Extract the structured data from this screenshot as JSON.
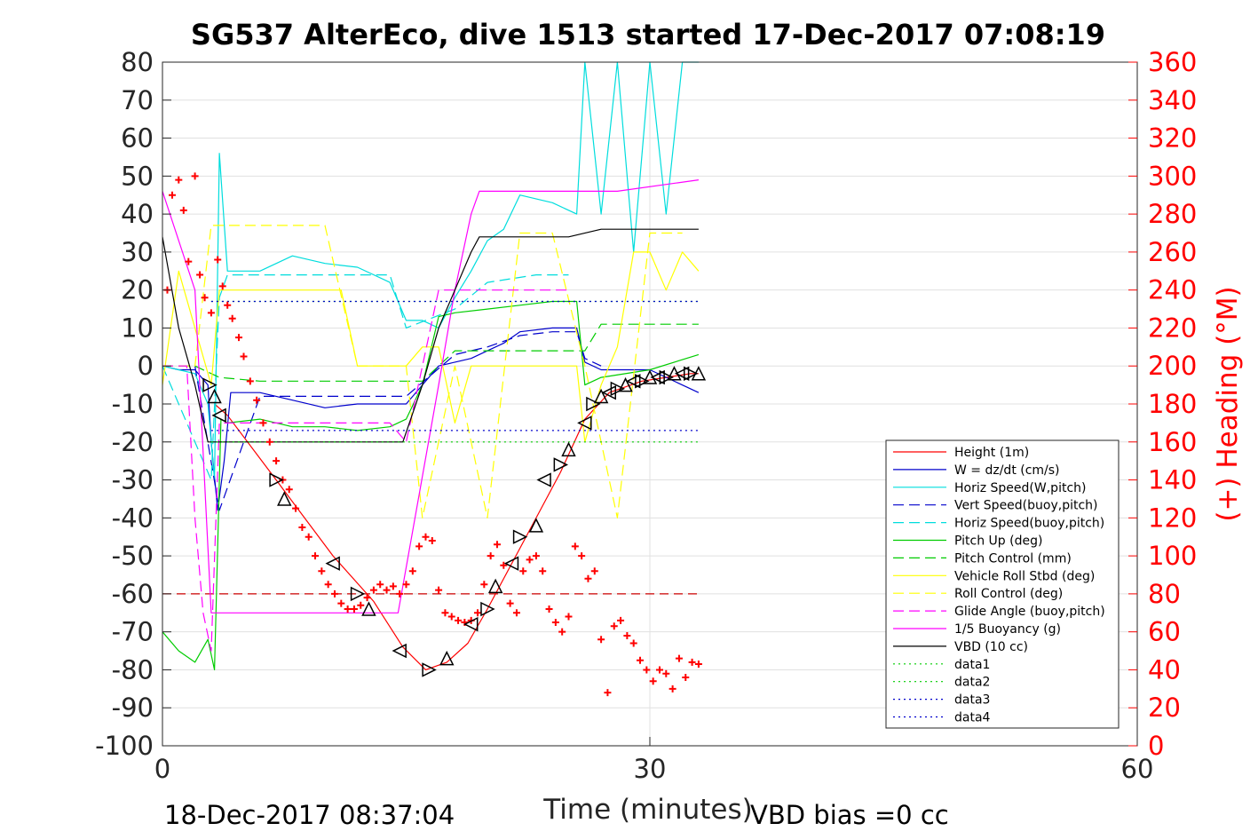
{
  "chart_data": {
    "type": "line",
    "title": "SG537 AlterEco, dive 1513 started 17-Dec-2017 07:08:19",
    "xlabel": "Time (minutes)",
    "ylabel": "",
    "ylabel_right": "(+) Heading (°M)",
    "xlim": [
      0,
      60
    ],
    "ylim": [
      -100,
      80
    ],
    "ylim_right": [
      0,
      360
    ],
    "x_ticks": [
      "0",
      "30",
      "60"
    ],
    "y_ticks": [
      "80",
      "70",
      "60",
      "50",
      "40",
      "30",
      "20",
      "10",
      "0",
      "-10",
      "-20",
      "-30",
      "-40",
      "-50",
      "-60",
      "-70",
      "-80",
      "-90",
      "-100"
    ],
    "y_ticks_right": [
      "360",
      "340",
      "320",
      "300",
      "280",
      "260",
      "240",
      "220",
      "200",
      "180",
      "160",
      "140",
      "120",
      "100",
      "80",
      "60",
      "40",
      "20",
      "0"
    ],
    "grid": true,
    "legend_position": "bottom-right",
    "footer_left": "18-Dec-2017 08:37:04",
    "footer_right": "VBD bias =0 cc",
    "legend": [
      {
        "label": "Height (1m)",
        "color": "#ff0000",
        "dash": ""
      },
      {
        "label": "W = dz/dt (cm/s)",
        "color": "#0000cc",
        "dash": ""
      },
      {
        "label": "Horiz Speed(W,pitch)",
        "color": "#00dddd",
        "dash": ""
      },
      {
        "label": "Vert Speed(buoy,pitch)",
        "color": "#0000cc",
        "dash": "12,6"
      },
      {
        "label": "Horiz Speed(buoy,pitch)",
        "color": "#00dddd",
        "dash": "12,6"
      },
      {
        "label": "Pitch Up (deg)",
        "color": "#00cc00",
        "dash": ""
      },
      {
        "label": "Pitch Control (mm)",
        "color": "#00cc00",
        "dash": "12,6"
      },
      {
        "label": "Vehicle Roll Stbd (deg)",
        "color": "#ffff00",
        "dash": ""
      },
      {
        "label": "Roll Control (deg)",
        "color": "#ffff00",
        "dash": "12,6"
      },
      {
        "label": "Glide Angle (buoy,pitch)",
        "color": "#ff00ff",
        "dash": "12,6"
      },
      {
        "label": "1/5 Buoyancy (g)",
        "color": "#ff00ff",
        "dash": ""
      },
      {
        "label": "VBD (10 cc)",
        "color": "#000000",
        "dash": ""
      },
      {
        "label": "data1",
        "color": "#00cc00",
        "dash": "2,4"
      },
      {
        "label": "data2",
        "color": "#00cc00",
        "dash": "2,4"
      },
      {
        "label": "data3",
        "color": "#0000cc",
        "dash": "2,4"
      },
      {
        "label": "data4",
        "color": "#0000cc",
        "dash": "2,4"
      }
    ],
    "series": [
      {
        "name": "Height (1m)",
        "color": "#ff0000",
        "dash": "",
        "axis": "left",
        "x": [
          3.2,
          4.0,
          7.0,
          10.5,
          13.0,
          14.8,
          16.2,
          17.5,
          18.8,
          20.0,
          22.0,
          24.5,
          26.0,
          27.5,
          29.5,
          31.0,
          32.5,
          33.0
        ],
        "y": [
          -10,
          -13,
          -30,
          -50,
          -62,
          -74,
          -80,
          -78,
          -73,
          -64,
          -48,
          -28,
          -14,
          -7,
          -4,
          -3,
          -2,
          -2
        ]
      },
      {
        "name": "W = dz/dt (cm/s)",
        "color": "#0000cc",
        "dash": "",
        "axis": "left",
        "x": [
          0,
          1.0,
          2.0,
          2.8,
          3.0,
          3.4,
          3.8,
          4.2,
          6.0,
          8.0,
          10.0,
          12.0,
          14.0,
          15.0,
          16.0,
          17.0,
          18.0,
          19.0,
          20.0,
          21.0,
          22.0,
          24.0,
          25.5,
          26.0,
          27.0,
          30.0,
          33.0
        ],
        "y": [
          0,
          -1,
          -1,
          -5,
          -20,
          -38,
          -25,
          -7,
          -7,
          -9,
          -11,
          -10,
          -10,
          -10,
          -5,
          0,
          1,
          2,
          4,
          6,
          9,
          10,
          10,
          1,
          -1,
          -1,
          -7
        ]
      },
      {
        "name": "Horiz Speed(W,pitch)",
        "color": "#00dddd",
        "dash": "",
        "axis": "left",
        "x": [
          0,
          1.0,
          2.0,
          2.8,
          3.2,
          3.5,
          4.0,
          6.0,
          8.0,
          10.0,
          12.0,
          14.0,
          15.0,
          16.0,
          17.0,
          18.0,
          19.0,
          20.0,
          21.0,
          22.0,
          24.0,
          25.5,
          26.0,
          27.0,
          28.0,
          29.0,
          30.0,
          31.0,
          32.0,
          33.0
        ],
        "y": [
          0,
          -1,
          -2,
          -10,
          -30,
          56,
          25,
          25,
          29,
          27,
          26,
          22,
          12,
          12,
          10,
          18,
          25,
          33,
          36,
          45,
          43,
          40,
          80,
          40,
          80,
          30,
          80,
          40,
          80,
          80
        ]
      },
      {
        "name": "Vert Speed(buoy,pitch)",
        "color": "#0000cc",
        "dash": "12,6",
        "axis": "left",
        "x": [
          0,
          2.0,
          3.5,
          6.0,
          14.0,
          15.0,
          18.0,
          20.0,
          22.0,
          24.0,
          25.5,
          26.0,
          27.0
        ],
        "y": [
          0,
          0,
          -38,
          -8,
          -8,
          -8,
          3,
          5,
          8,
          9,
          9,
          2,
          0
        ]
      },
      {
        "name": "Horiz Speed(buoy,pitch)",
        "color": "#00dddd",
        "dash": "12,6",
        "axis": "left",
        "x": [
          0,
          3.0,
          3.5,
          4.0,
          14.0,
          15.0,
          18.0,
          20.0,
          23.0,
          25.0
        ],
        "y": [
          0,
          -30,
          18,
          24,
          24,
          10,
          15,
          22,
          24,
          24
        ]
      },
      {
        "name": "Pitch Up (deg)",
        "color": "#00cc00",
        "dash": "",
        "axis": "left",
        "x": [
          0,
          1.0,
          2.0,
          2.8,
          3.2,
          3.6,
          4.0,
          6.0,
          8.0,
          10.0,
          12.0,
          14.0,
          15.0,
          16.0,
          17.0,
          18.0,
          20.0,
          22.0,
          24.0,
          25.5,
          26.0,
          27.0,
          30.0,
          33.0
        ],
        "y": [
          -70,
          -75,
          -78,
          -72,
          -80,
          -14,
          -15,
          -14,
          -16,
          -16,
          -17,
          -16,
          -14,
          -5,
          13,
          14,
          15,
          16,
          17,
          17,
          -5,
          -3,
          -1,
          3
        ]
      },
      {
        "name": "Pitch Control (mm)",
        "color": "#00cc00",
        "dash": "12,6",
        "axis": "left",
        "x": [
          0,
          2.0,
          3.5,
          6.0,
          14.0,
          16.0,
          18.0,
          20.0,
          26.0,
          27.0,
          33.0
        ],
        "y": [
          0,
          0,
          -3,
          -4,
          -4,
          -4,
          4,
          4,
          4,
          11,
          11
        ]
      },
      {
        "name": "Vehicle Roll Stbd (deg)",
        "color": "#ffff00",
        "dash": "",
        "axis": "left",
        "x": [
          0,
          1.0,
          2.0,
          3.0,
          3.5,
          4.0,
          6.0,
          8.0,
          10.0,
          11.0,
          12.0,
          14.0,
          15.0,
          16.0,
          17.0,
          18.0,
          19.0,
          20.0,
          22.0,
          24.0,
          25.5,
          26.0,
          27.0,
          28.0,
          29.0,
          30.0,
          31.0,
          32.0,
          33.0
        ],
        "y": [
          -5,
          25,
          10,
          -5,
          20,
          20,
          20,
          20,
          20,
          20,
          0,
          0,
          0,
          5,
          5,
          -15,
          0,
          0,
          0,
          0,
          0,
          -20,
          -5,
          5,
          30,
          30,
          20,
          30,
          25
        ]
      },
      {
        "name": "Roll Control (deg)",
        "color": "#ffff00",
        "dash": "12,6",
        "axis": "left",
        "x": [
          0,
          2.0,
          3.0,
          3.5,
          6.0,
          10.0,
          12.0,
          14.0,
          15.0,
          16.0,
          18.0,
          20.0,
          22.0,
          24.0,
          26.0,
          28.0,
          30.0,
          32.0
        ],
        "y": [
          0,
          0,
          37,
          37,
          37,
          37,
          0,
          0,
          0,
          -40,
          0,
          -40,
          35,
          35,
          0,
          -40,
          35,
          35
        ]
      },
      {
        "name": "Glide Angle (buoy,pitch)",
        "color": "#ff00ff",
        "dash": "12,6",
        "axis": "left",
        "x": [
          0,
          1.5,
          2.0,
          2.5,
          3.0,
          3.5,
          4.0,
          14.0,
          15.0,
          17.0,
          18.0,
          20.0,
          24.0,
          25.0
        ],
        "y": [
          0,
          0,
          -40,
          -65,
          -75,
          -15,
          -15,
          -15,
          -20,
          20,
          20,
          20,
          20,
          20
        ]
      },
      {
        "name": "1/5 Buoyancy (g)",
        "color": "#ff00ff",
        "dash": "",
        "axis": "left",
        "x": [
          0,
          2.0,
          3.0,
          3.5,
          4.0,
          14.5,
          17.0,
          18.0,
          19.0,
          19.5,
          20.0,
          28.0,
          33.0
        ],
        "y": [
          46,
          20,
          -65,
          -65,
          -65,
          -65,
          -5,
          20,
          40,
          46,
          46,
          46,
          49
        ]
      },
      {
        "name": "VBD (10 cc)",
        "color": "#000000",
        "dash": "",
        "axis": "left",
        "x": [
          0,
          1.0,
          2.0,
          2.8,
          3.5,
          14.8,
          16.0,
          17.0,
          18.0,
          19.0,
          19.5,
          25.0,
          27.0,
          33.0
        ],
        "y": [
          34,
          10,
          -5,
          -20,
          -20,
          -20,
          -5,
          10,
          20,
          30,
          34,
          34,
          36,
          36
        ]
      },
      {
        "name": "data1",
        "color": "#00cc00",
        "dash": "2,4",
        "axis": "left",
        "x": [
          3.0,
          33.0
        ],
        "y": [
          -20,
          -20
        ]
      },
      {
        "name": "data2",
        "color": "#00cc00",
        "dash": "2,4",
        "axis": "left",
        "x": [
          3.0,
          33.0
        ],
        "y": [
          17,
          17
        ]
      },
      {
        "name": "data3",
        "color": "#0000cc",
        "dash": "2,4",
        "axis": "left",
        "x": [
          3.0,
          33.0
        ],
        "y": [
          -17,
          -17
        ]
      },
      {
        "name": "data4",
        "color": "#0000cc",
        "dash": "2,4",
        "axis": "left",
        "x": [
          3.0,
          33.0
        ],
        "y": [
          17,
          17
        ]
      }
    ],
    "reference_line": {
      "color": "#cc0000",
      "dash": "10,6",
      "y": -60,
      "x": [
        0,
        33.0
      ]
    },
    "heading_points": {
      "color": "#ff0000",
      "marker": "+",
      "x": [
        0.3,
        0.6,
        1.0,
        1.3,
        1.6,
        2.0,
        2.3,
        2.6,
        3.0,
        3.4,
        3.7,
        4.0,
        4.3,
        4.7,
        5.0,
        5.4,
        5.8,
        6.2,
        6.6,
        7.0,
        7.4,
        7.8,
        8.2,
        8.6,
        9.0,
        9.4,
        9.8,
        10.2,
        10.6,
        11.0,
        11.4,
        11.8,
        12.2,
        12.6,
        13.0,
        13.4,
        13.8,
        14.2,
        14.6,
        15.0,
        15.4,
        15.8,
        16.2,
        16.6,
        17.0,
        17.4,
        17.8,
        18.2,
        18.6,
        19.0,
        19.4,
        19.8,
        20.2,
        20.6,
        21.0,
        21.4,
        21.8,
        22.2,
        22.6,
        23.0,
        23.4,
        23.8,
        24.2,
        24.6,
        25.0,
        25.4,
        25.8,
        26.2,
        26.6,
        27.0,
        27.4,
        27.8,
        28.2,
        28.6,
        29.0,
        29.4,
        29.8,
        30.2,
        30.6,
        31.0,
        31.4,
        31.8,
        32.2,
        32.6,
        33.0
      ],
      "y": [
        240,
        290,
        298,
        282,
        255,
        300,
        248,
        236,
        228,
        256,
        242,
        232,
        225,
        215,
        205,
        192,
        182,
        170,
        160,
        150,
        140,
        135,
        125,
        115,
        110,
        100,
        92,
        85,
        80,
        75,
        72,
        72,
        74,
        78,
        82,
        85,
        82,
        84,
        80,
        85,
        92,
        105,
        110,
        108,
        82,
        70,
        68,
        66,
        65,
        66,
        70,
        85,
        100,
        106,
        95,
        75,
        70,
        92,
        98,
        100,
        92,
        72,
        65,
        60,
        68,
        105,
        100,
        88,
        92,
        56,
        28,
        63,
        66,
        58,
        54,
        45,
        40,
        34,
        40,
        38,
        30,
        46,
        36,
        44,
        43
      ]
    },
    "marker_points": {
      "color": "#000000",
      "marker": "triangle",
      "x": [
        2.9,
        3.2,
        3.5,
        7.0,
        7.5,
        10.5,
        12.0,
        12.7,
        14.6,
        16.4,
        17.5,
        19.0,
        20.0,
        20.5,
        21.5,
        22.0,
        23.0,
        23.5,
        24.5,
        25.0,
        26.0,
        26.5,
        27.0,
        27.5,
        28.0,
        28.5,
        29.0,
        29.5,
        30.0,
        30.5,
        31.0,
        31.5,
        32.0,
        32.5,
        33.0
      ],
      "y": [
        -5,
        -8,
        -13,
        -30,
        -35,
        -52,
        -60,
        -64,
        -75,
        -80,
        -77,
        -68,
        -64,
        -58,
        -52,
        -45,
        -42,
        -30,
        -26,
        -22,
        -15,
        -10,
        -8,
        -7,
        -6,
        -5,
        -4,
        -4,
        -3,
        -3,
        -3,
        -2,
        -2,
        -2,
        -2
      ]
    }
  }
}
